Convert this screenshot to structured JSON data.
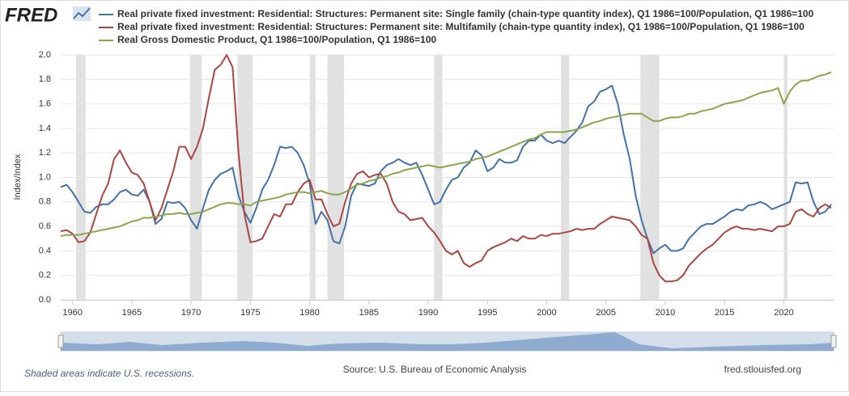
{
  "chart_data": {
    "type": "line",
    "logo": "FRED",
    "ylabel": "Index/Index",
    "note": "Shaded areas indicate U.S. recessions.",
    "source": "Source: U.S. Bureau of Economic Analysis",
    "site": "fred.stlouisfed.org",
    "xlim": [
      1959,
      2024.2
    ],
    "xticks": [
      1960,
      1965,
      1970,
      1975,
      1980,
      1985,
      1990,
      1995,
      2000,
      2005,
      2010,
      2015,
      2020
    ],
    "ylim": [
      0,
      2
    ],
    "yticks": [
      {
        "value": 0,
        "label": "0.0"
      },
      0.2,
      0.4,
      0.6,
      0.8,
      {
        "value": 1,
        "label": "1.0"
      },
      1.2,
      1.4,
      1.6,
      1.8,
      {
        "value": 2,
        "label": "2.0"
      }
    ],
    "grid": true,
    "recession_color": "#e1e1e1",
    "recessions": [
      [
        1960.3,
        1961.1
      ],
      [
        1969.9,
        1970.9
      ],
      [
        1973.9,
        1975.2
      ],
      [
        1980.0,
        1980.5
      ],
      [
        1981.5,
        1982.9
      ],
      [
        1990.5,
        1991.2
      ],
      [
        2001.2,
        2001.9
      ],
      [
        2007.9,
        2009.5
      ],
      [
        2020.0,
        2020.3
      ]
    ],
    "x": [
      1959,
      1959.5,
      1960,
      1960.5,
      1961,
      1961.5,
      1962,
      1962.5,
      1963,
      1963.5,
      1964,
      1964.5,
      1965,
      1965.5,
      1966,
      1966.5,
      1967,
      1967.5,
      1968,
      1968.5,
      1969,
      1969.5,
      1970,
      1970.5,
      1971,
      1971.5,
      1972,
      1972.5,
      1973,
      1973.5,
      1974,
      1974.5,
      1975,
      1975.5,
      1976,
      1976.5,
      1977,
      1977.5,
      1978,
      1978.5,
      1979,
      1979.5,
      1980,
      1980.5,
      1981,
      1981.5,
      1982,
      1982.5,
      1983,
      1983.5,
      1984,
      1984.5,
      1985,
      1985.5,
      1986,
      1986.5,
      1987,
      1987.5,
      1988,
      1988.5,
      1989,
      1989.5,
      1990,
      1990.5,
      1991,
      1991.5,
      1992,
      1992.5,
      1993,
      1993.5,
      1994,
      1994.5,
      1995,
      1995.5,
      1996,
      1996.5,
      1997,
      1997.5,
      1998,
      1998.5,
      1999,
      1999.5,
      2000,
      2000.5,
      2001,
      2001.5,
      2002,
      2002.5,
      2003,
      2003.5,
      2004,
      2004.5,
      2005,
      2005.5,
      2006,
      2006.5,
      2007,
      2007.5,
      2008,
      2008.5,
      2009,
      2009.5,
      2010,
      2010.5,
      2011,
      2011.5,
      2012,
      2012.5,
      2013,
      2013.5,
      2014,
      2014.5,
      2015,
      2015.5,
      2016,
      2016.5,
      2017,
      2017.5,
      2018,
      2018.5,
      2019,
      2019.5,
      2020,
      2020.5,
      2021,
      2021.5,
      2022,
      2022.5,
      2023,
      2023.5,
      2024
    ],
    "series": [
      {
        "name": "Real private fixed investment: Residential: Structures: Permanent site: Single family (chain-type quantity index), Q1 1986=100/Population, Q1 1986=100",
        "color": "#4572a7",
        "values": [
          0.92,
          0.94,
          0.88,
          0.8,
          0.72,
          0.71,
          0.76,
          0.78,
          0.78,
          0.82,
          0.88,
          0.9,
          0.86,
          0.85,
          0.9,
          0.8,
          0.62,
          0.66,
          0.8,
          0.79,
          0.8,
          0.75,
          0.65,
          0.58,
          0.75,
          0.9,
          0.98,
          1.03,
          1.05,
          1.08,
          0.85,
          0.72,
          0.63,
          0.75,
          0.9,
          0.98,
          1.1,
          1.25,
          1.24,
          1.25,
          1.2,
          1.1,
          0.95,
          0.62,
          0.72,
          0.65,
          0.48,
          0.46,
          0.6,
          0.85,
          0.95,
          0.94,
          0.93,
          0.95,
          1.05,
          1.1,
          1.12,
          1.15,
          1.12,
          1.1,
          1.12,
          1.02,
          0.9,
          0.78,
          0.8,
          0.9,
          0.98,
          1.0,
          1.08,
          1.12,
          1.22,
          1.18,
          1.05,
          1.08,
          1.15,
          1.12,
          1.12,
          1.14,
          1.25,
          1.3,
          1.3,
          1.35,
          1.3,
          1.28,
          1.3,
          1.28,
          1.33,
          1.38,
          1.45,
          1.58,
          1.62,
          1.7,
          1.72,
          1.75,
          1.6,
          1.35,
          1.15,
          0.85,
          0.65,
          0.5,
          0.38,
          0.42,
          0.45,
          0.4,
          0.4,
          0.42,
          0.5,
          0.55,
          0.6,
          0.62,
          0.62,
          0.65,
          0.68,
          0.72,
          0.74,
          0.73,
          0.77,
          0.78,
          0.8,
          0.78,
          0.74,
          0.76,
          0.78,
          0.8,
          0.96,
          0.95,
          0.96,
          0.8,
          0.7,
          0.72,
          0.78
        ]
      },
      {
        "name": "Real private fixed investment: Residential: Structures: Permanent site: Multifamily (chain-type quantity index), Q1 1986=100/Population, Q1 1986=100",
        "color": "#aa4643",
        "values": [
          0.56,
          0.57,
          0.54,
          0.47,
          0.48,
          0.55,
          0.7,
          0.85,
          0.95,
          1.15,
          1.22,
          1.12,
          1.04,
          1.02,
          0.95,
          0.8,
          0.65,
          0.75,
          0.9,
          1.05,
          1.25,
          1.25,
          1.15,
          1.25,
          1.4,
          1.65,
          1.88,
          1.92,
          2.0,
          1.9,
          1.2,
          0.7,
          0.47,
          0.48,
          0.5,
          0.6,
          0.7,
          0.68,
          0.78,
          0.78,
          0.88,
          0.95,
          0.98,
          0.82,
          0.82,
          0.7,
          0.6,
          0.62,
          0.8,
          0.95,
          1.03,
          1.05,
          1.0,
          1.02,
          1.03,
          0.95,
          0.8,
          0.72,
          0.7,
          0.65,
          0.66,
          0.67,
          0.6,
          0.55,
          0.48,
          0.4,
          0.37,
          0.4,
          0.3,
          0.27,
          0.3,
          0.32,
          0.4,
          0.43,
          0.45,
          0.47,
          0.5,
          0.48,
          0.52,
          0.5,
          0.5,
          0.53,
          0.52,
          0.54,
          0.54,
          0.55,
          0.56,
          0.58,
          0.57,
          0.58,
          0.58,
          0.62,
          0.65,
          0.68,
          0.67,
          0.66,
          0.65,
          0.6,
          0.53,
          0.5,
          0.3,
          0.2,
          0.15,
          0.15,
          0.16,
          0.2,
          0.28,
          0.33,
          0.38,
          0.42,
          0.45,
          0.5,
          0.55,
          0.58,
          0.6,
          0.58,
          0.58,
          0.57,
          0.58,
          0.57,
          0.56,
          0.6,
          0.6,
          0.62,
          0.72,
          0.74,
          0.7,
          0.68,
          0.75,
          0.78,
          0.75
        ]
      },
      {
        "name": "Real Gross Domestic Product, Q1 1986=100/Population, Q1 1986=100",
        "color": "#89a54e",
        "values": [
          0.52,
          0.53,
          0.53,
          0.53,
          0.54,
          0.55,
          0.56,
          0.57,
          0.58,
          0.59,
          0.6,
          0.62,
          0.64,
          0.65,
          0.67,
          0.67,
          0.68,
          0.69,
          0.7,
          0.7,
          0.71,
          0.7,
          0.7,
          0.71,
          0.72,
          0.74,
          0.76,
          0.78,
          0.79,
          0.79,
          0.78,
          0.78,
          0.77,
          0.8,
          0.81,
          0.82,
          0.83,
          0.84,
          0.86,
          0.87,
          0.88,
          0.88,
          0.87,
          0.88,
          0.89,
          0.87,
          0.86,
          0.86,
          0.88,
          0.91,
          0.94,
          0.95,
          0.97,
          0.98,
          1.0,
          1.01,
          1.03,
          1.04,
          1.06,
          1.07,
          1.08,
          1.09,
          1.1,
          1.09,
          1.08,
          1.09,
          1.1,
          1.11,
          1.12,
          1.13,
          1.15,
          1.16,
          1.17,
          1.19,
          1.21,
          1.23,
          1.25,
          1.27,
          1.29,
          1.31,
          1.32,
          1.35,
          1.37,
          1.37,
          1.37,
          1.37,
          1.38,
          1.39,
          1.41,
          1.43,
          1.45,
          1.46,
          1.48,
          1.49,
          1.5,
          1.51,
          1.52,
          1.52,
          1.52,
          1.49,
          1.46,
          1.46,
          1.48,
          1.49,
          1.49,
          1.5,
          1.52,
          1.52,
          1.54,
          1.55,
          1.56,
          1.58,
          1.6,
          1.61,
          1.62,
          1.63,
          1.65,
          1.67,
          1.69,
          1.7,
          1.71,
          1.73,
          1.6,
          1.7,
          1.76,
          1.79,
          1.79,
          1.81,
          1.83,
          1.84,
          1.86
        ]
      }
    ]
  }
}
